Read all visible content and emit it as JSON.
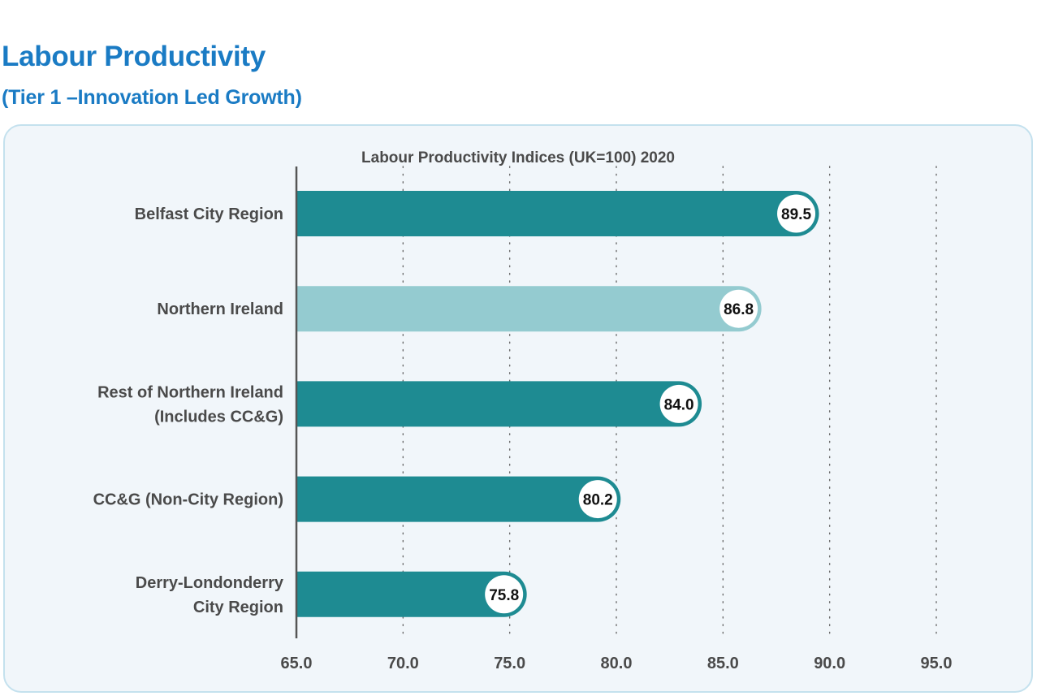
{
  "header": {
    "title": "Labour Productivity",
    "subtitle": "(Tier 1 –Innovation Led Growth)"
  },
  "chart_data": {
    "type": "bar",
    "orientation": "horizontal",
    "title": "Labour Productivity Indices (UK=100) 2020",
    "xlabel": "",
    "ylabel": "",
    "categories": [
      [
        "Belfast City Region"
      ],
      [
        "Northern Ireland"
      ],
      [
        "Rest of Northern Ireland",
        "(Includes CC&G)"
      ],
      [
        "CC&G (Non-City Region)"
      ],
      [
        "Derry-Londonderry",
        "City Region"
      ]
    ],
    "values": [
      89.5,
      86.8,
      84.0,
      80.2,
      75.8
    ],
    "value_labels": [
      "89.5",
      "86.8",
      "84.0",
      "80.2",
      "75.8"
    ],
    "highlight_index": 1,
    "xlim": [
      65.0,
      95.0
    ],
    "xticks": [
      65.0,
      70.0,
      75.0,
      80.0,
      85.0,
      90.0,
      95.0
    ],
    "xtick_labels": [
      "65.0",
      "70.0",
      "75.0",
      "80.0",
      "85.0",
      "90.0",
      "95.0"
    ],
    "grid": "vertical-dotted",
    "legend": "none",
    "colors": {
      "bar": "#1e8b92",
      "bar_highlight": "#94cbd0",
      "value_bubble": "#ffffff",
      "text": "#4a4a4a",
      "value_text": "#111111"
    }
  }
}
